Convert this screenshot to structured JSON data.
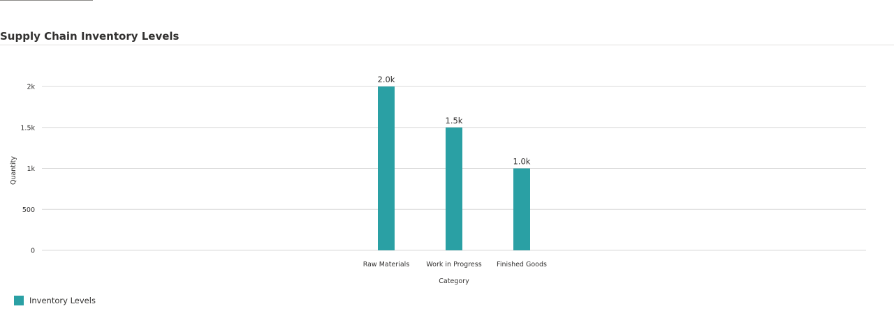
{
  "header": {
    "title": "Supply Chain Inventory Levels"
  },
  "colors": {
    "bar": "#2aa0a4",
    "grid": "#d8d8d8",
    "axis_text": "#323130"
  },
  "legend": {
    "items": [
      {
        "label": "Inventory Levels",
        "color": "#2aa0a4"
      }
    ]
  },
  "chart_data": {
    "type": "bar",
    "title": "Supply Chain Inventory Levels",
    "categories": [
      "Raw Materials",
      "Work in Progress",
      "Finished Goods"
    ],
    "series": [
      {
        "name": "Inventory Levels",
        "values": [
          2000,
          1500,
          1000
        ],
        "data_labels": [
          "2.0k",
          "1.5k",
          "1.0k"
        ]
      }
    ],
    "xlabel": "Category",
    "ylabel": "Quantity",
    "ylim": [
      0,
      2000
    ],
    "yticks": [
      0,
      500,
      1000,
      1500,
      2000
    ],
    "ytick_labels": [
      "0",
      "500",
      "1k",
      "1.5k",
      "2k"
    ],
    "grid": true,
    "legend_position": "bottom-left"
  }
}
